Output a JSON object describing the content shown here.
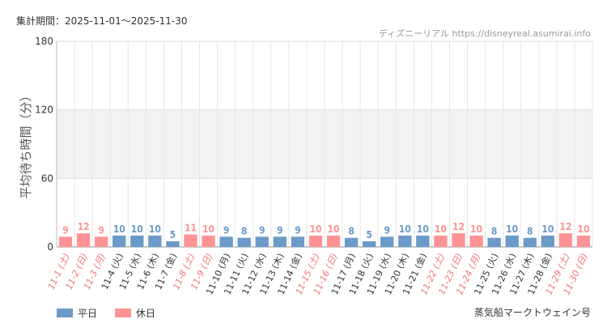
{
  "header": {
    "period_label": "集計期間：2025-11-01～2025-11-30",
    "credit": "ディズニーリアル https://disneyreal.asumirai.info"
  },
  "legend": {
    "weekday_label": "平日",
    "holiday_label": "休日",
    "weekday_color": "#6b9ac8",
    "holiday_color": "#fe9396"
  },
  "attraction_name": "蒸気船マークトウェイン号",
  "chart_data": {
    "type": "bar",
    "ylabel": "平均待ち時間（分）",
    "ylim": [
      0,
      180
    ],
    "yticks": [
      0,
      60,
      120,
      180
    ],
    "shaded_band": [
      60,
      120
    ],
    "categories": [
      "11-1 (土)",
      "11-2 (日)",
      "11-3 (月)",
      "11-4 (火)",
      "11-5 (水)",
      "11-6 (木)",
      "11-7 (金)",
      "11-8 (土)",
      "11-9 (日)",
      "11-10 (月)",
      "11-11 (火)",
      "11-12 (水)",
      "11-13 (木)",
      "11-14 (金)",
      "11-15 (土)",
      "11-16 (日)",
      "11-17 (月)",
      "11-18 (火)",
      "11-19 (水)",
      "11-20 (木)",
      "11-21 (金)",
      "11-22 (土)",
      "11-23 (日)",
      "11-24 (月)",
      "11-25 (火)",
      "11-26 (水)",
      "11-27 (木)",
      "11-28 (金)",
      "11-29 (土)",
      "11-30 (日)"
    ],
    "values": [
      9,
      12,
      9,
      10,
      10,
      10,
      5,
      11,
      10,
      9,
      8,
      9,
      9,
      9,
      10,
      10,
      8,
      5,
      9,
      10,
      10,
      10,
      12,
      10,
      8,
      10,
      8,
      10,
      12,
      10
    ],
    "day_type": [
      "holiday",
      "holiday",
      "holiday",
      "weekday",
      "weekday",
      "weekday",
      "weekday",
      "holiday",
      "holiday",
      "weekday",
      "weekday",
      "weekday",
      "weekday",
      "weekday",
      "holiday",
      "holiday",
      "weekday",
      "weekday",
      "weekday",
      "weekday",
      "weekday",
      "holiday",
      "holiday",
      "holiday",
      "weekday",
      "weekday",
      "weekday",
      "weekday",
      "holiday",
      "holiday"
    ],
    "colors": {
      "weekday": "#6b9ac8",
      "holiday": "#fe9396"
    }
  }
}
